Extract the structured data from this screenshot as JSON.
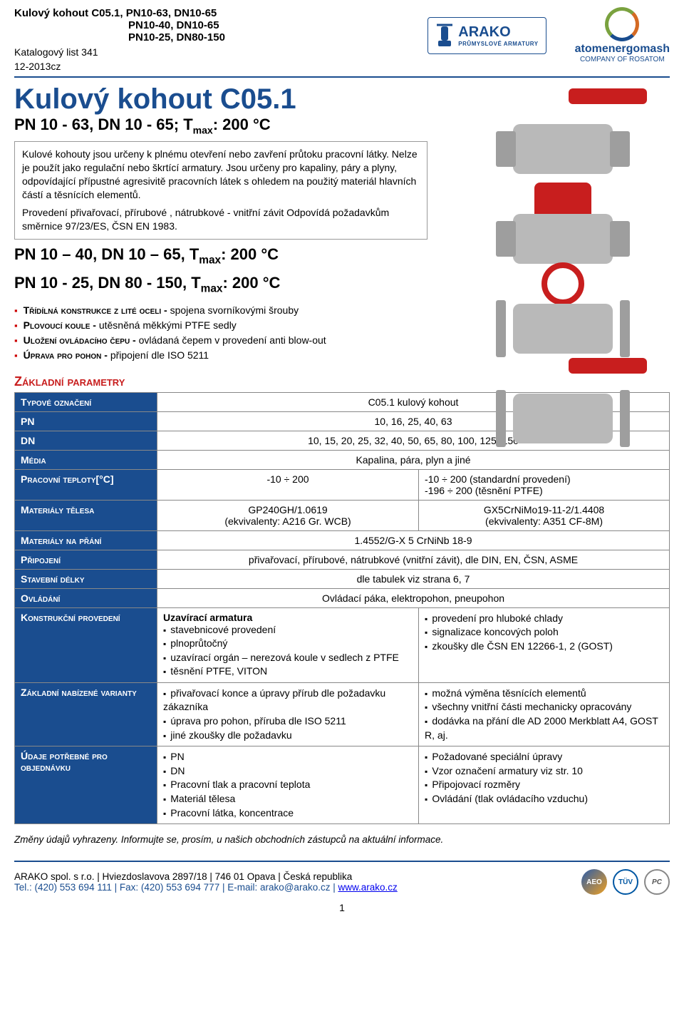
{
  "header": {
    "title_line1": "Kulový kohout C05.1, PN10-63, DN10-65",
    "title_line2": "PN10-40, DN10-65",
    "title_line3": "PN10-25, DN80-150",
    "catalog": "Katalogový list 341",
    "rev": "12-2013cz",
    "logo_arako_name": "ARAKO",
    "logo_arako_sub": "PRŮMYSLOVÉ ARMATURY",
    "logo_atom_name": "atomenergomash",
    "logo_atom_sub": "COMPANY OF ROSATOM"
  },
  "title": "Kulový kohout C05.1",
  "subtitle": "PN 10 - 63, DN 10 - 65; T",
  "subtitle_max": "max",
  "subtitle_tail": ": 200 °C",
  "intro_p1": "Kulové kohouty jsou určeny k plnému otevření nebo zavření průtoku pracovní látky. Nelze je použít jako regulační nebo škrtící armatury. Jsou určeny pro kapaliny, páry a plyny, odpovídající přípustné agresivitě pracovních látek s ohledem na použitý materiál hlavních částí a těsnících elementů.",
  "intro_p2": "Provedení přivařovací, přírubové , nátrubkové - vnitřní závit Odpovídá požadavkům směrnice 97/23/ES, ČSN EN 1983.",
  "variant2": "PN 10 – 40, DN 10 – 65, T",
  "variant3": "PN 10 - 25, DN 80 - 150, T",
  "features": [
    {
      "caps": "Třídílná konstrukce z lité oceli - ",
      "rest": "spojena svorníkovými šrouby"
    },
    {
      "caps": "Plovoucí koule - ",
      "rest": " utěsněná měkkými PTFE sedly"
    },
    {
      "caps": "Uložení ovládacího čepu  - ",
      "rest": "ovládaná čepem v provedení anti blow-out"
    },
    {
      "caps": "Úprava pro pohon - ",
      "rest": "připojení dle ISO 5211"
    }
  ],
  "section_title": "Základní parametry",
  "rows": {
    "type_label": "Typové označení",
    "type_val": "C05.1 kulový kohout",
    "pn_label": "PN",
    "pn_val": "10, 16, 25, 40, 63",
    "dn_label": "DN",
    "dn_val": "10, 15, 20, 25, 32, 40, 50, 65, 80, 100, 125, 150",
    "media_label": "Média",
    "media_val": "Kapalina, pára, plyn a jiné",
    "temp_label": "Pracovní teploty[°C]",
    "temp_left": "-10 ÷ 200",
    "temp_right1": "-10 ÷ 200 (standardní provedení)",
    "temp_right2": "-196 ÷ 200 (těsnění PTFE)",
    "matbody_label": "Materiály tělesa",
    "matbody_l1": "GP240GH/1.0619",
    "matbody_l2": "(ekvivalenty: A216 Gr. WCB)",
    "matbody_r1": "GX5CrNiMo19-11-2/1.4408",
    "matbody_r2": "(ekvivalenty: A351 CF-8M)",
    "matopt_label": "Materiály na přání",
    "matopt_val": "1.4552/G-X 5 CrNiNb 18-9",
    "conn_label": "Připojení",
    "conn_val": "přivařovací, přírubové, nátrubkové (vnitřní závit), dle DIN, EN, ČSN, ASME",
    "len_label": "Stavební délky",
    "len_val": "dle tabulek viz strana  6, 7",
    "ctrl_label": "Ovládání",
    "ctrl_val": "Ovládací páka, elektropohon, pneupohon",
    "constr_label": "Konstrukční provedení",
    "constr_head": "Uzavírací armatura",
    "constr_left": [
      "stavebnicové provedení",
      "plnoprůtočný",
      "uzavírací orgán – nerezová koule v sedlech z PTFE",
      "těsnění PTFE, VITON"
    ],
    "constr_right": [
      "provedení pro hluboké chlady",
      "signalizace koncových poloh",
      "zkoušky dle ČSN EN 12266-1, 2 (GOST)"
    ],
    "var_label": "Základní nabízené varianty",
    "var_left": [
      "přivařovací konce a úpravy přírub dle požadavku zákazníka",
      "úprava pro pohon, příruba dle ISO 5211",
      "jiné zkoušky dle požadavku"
    ],
    "var_right": [
      "možná výměna těsnících elementů",
      "všechny vnitřní části mechanicky opracovány",
      "dodávka na přání dle AD 2000 Merkblatt A4, GOST R, aj."
    ],
    "order_label": "Údaje potřebné pro objednávku",
    "order_left": [
      "PN",
      "DN",
      "Pracovní tlak a pracovní teplota",
      "Materiál tělesa",
      "Pracovní látka, koncentrace"
    ],
    "order_right": [
      "Požadované speciální úpravy",
      "Vzor označení armatury viz str. 10",
      "Připojovací rozměry",
      "Ovládání (tlak ovládacího vzduchu)"
    ]
  },
  "footnote": "Změny údajů vyhrazeny. Informujte se, prosím, u našich obchodních zástupců na aktuální informace.",
  "footer": {
    "addr": "ARAKO spol. s r.o.  |  Hviezdoslavova 2897/18  |  746 01 Opava  |  Česká republika",
    "tel": "Tel.: (420) 553 694 111 | Fax: (420) 553 694 777 | E-mail: arako@arako.cz | ",
    "web": "www.arako.cz"
  },
  "page_number": "1",
  "colors": {
    "brand_blue": "#1a4d8f",
    "accent_red": "#c81e1e",
    "gray_body": "#b9b9b9"
  }
}
